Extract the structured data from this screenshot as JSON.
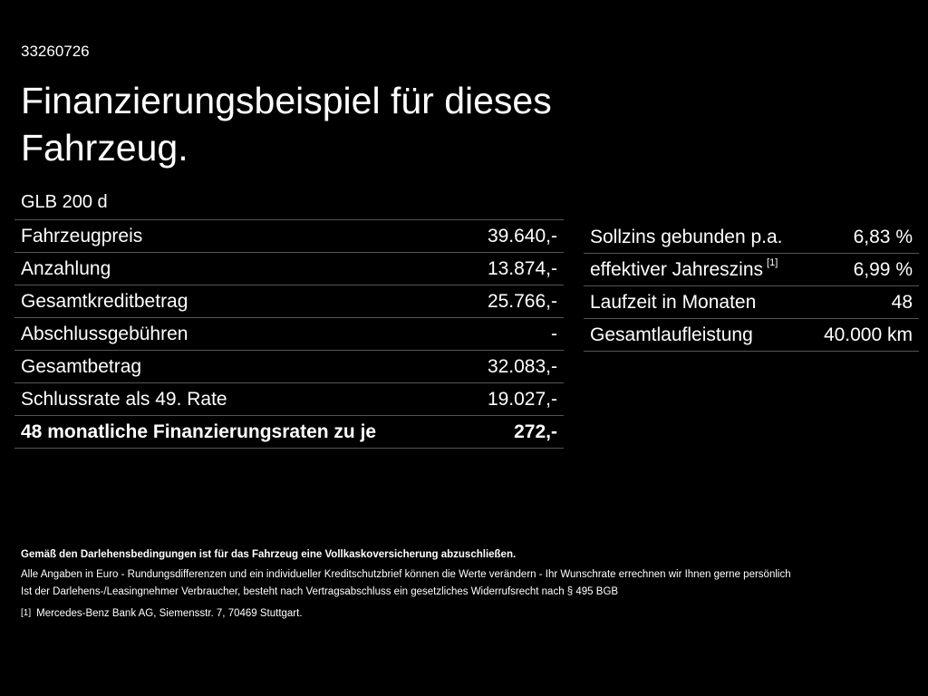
{
  "id": "33260726",
  "title": "Finanzierungsbeispiel für dieses Fahrzeug.",
  "model": "GLB 200 d",
  "left_rows": [
    {
      "label": "Fahrzeugpreis",
      "value": "39.640,-"
    },
    {
      "label": "Anzahlung",
      "value": "13.874,-"
    },
    {
      "label": "Gesamtkreditbetrag",
      "value": "25.766,-"
    },
    {
      "label": "Abschlussgebühren",
      "value": "-"
    },
    {
      "label": "Gesamtbetrag",
      "value": "32.083,-"
    },
    {
      "label": "Schlussrate als 49. Rate",
      "value": "19.027,-"
    },
    {
      "label": "48 monatliche Finanzierungsraten zu je",
      "value": "272,-"
    }
  ],
  "right_rows": [
    {
      "label": "Sollzins gebunden p.a.",
      "value": "6,83 %"
    },
    {
      "label": "effektiver Jahreszins",
      "sup": "[1]",
      "value": "6,99 %"
    },
    {
      "label": "Laufzeit in Monaten",
      "value": "48"
    },
    {
      "label": "Gesamtlaufleistung",
      "value": "40.000 km"
    }
  ],
  "footer": {
    "bold": "Gemäß den Darlehensbedingungen ist für das Fahrzeug eine Vollkaskoversicherung abzuschließen.",
    "line1": "Alle Angaben in Euro - Rundungsdifferenzen und ein individueller Kreditschutzbrief können die Werte verändern - Ihr Wunschrate errechnen wir Ihnen gerne persönlich",
    "line2": "Ist der Darlehens-/Leasingnehmer Verbraucher, besteht nach Vertragsabschluss ein gesetzliches Widerrufsrecht nach § 495 BGB",
    "note_mark": "[1]",
    "note": "Mercedes-Benz Bank AG, Siemensstr. 7, 70469 Stuttgart."
  }
}
